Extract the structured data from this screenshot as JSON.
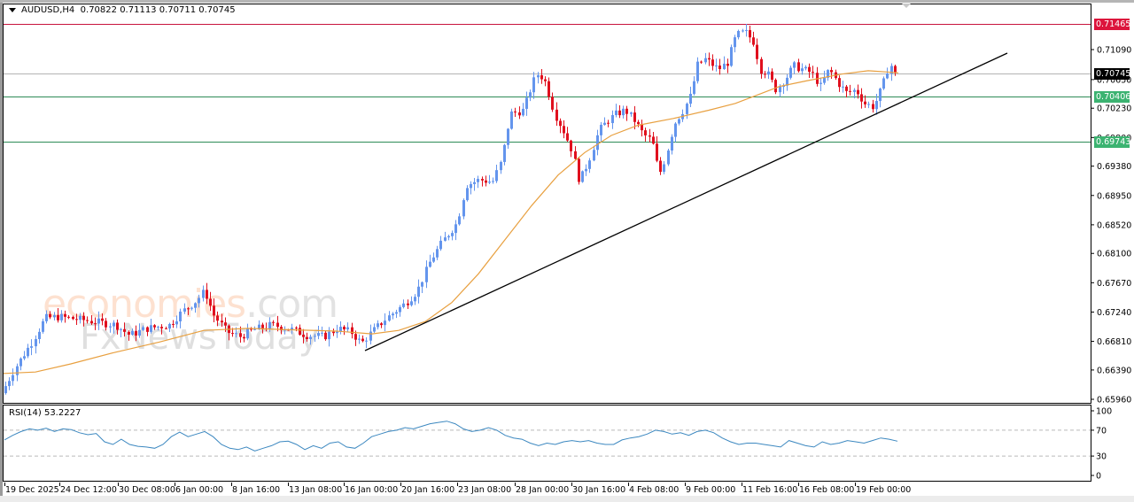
{
  "header": {
    "symbol": "AUDUSD,H4",
    "ohlc": "0.70822 0.71113 0.70711 0.70745"
  },
  "watermark": {
    "line1": "economies",
    "line1_suffix": ".com",
    "line2": "FxNewsToday"
  },
  "price_tags": [
    {
      "label": "0.71465",
      "price": 0.71465,
      "color": "#dc143c",
      "line_color": "#c8143c",
      "kind": "resistance"
    },
    {
      "label": "0.70745",
      "price": 0.70745,
      "color": "#000000",
      "line_color": "#b4b4b4",
      "kind": "current-price"
    },
    {
      "label": "0.70406",
      "price": 0.70406,
      "color": "#3cb371",
      "line_color": "#2e8b57",
      "kind": "support"
    },
    {
      "label": "0.69743",
      "price": 0.69743,
      "color": "#3cb371",
      "line_color": "#2e8b57",
      "kind": "support"
    }
  ],
  "rsi": {
    "label": "RSI(14) 53.2227",
    "levels": [
      "100",
      "70",
      "30",
      "0"
    ]
  },
  "colors": {
    "bull": "#6495ed",
    "bear": "#e0101e",
    "ma": "#e8a040",
    "trendline": "#000000",
    "rsi_line": "#3c88c0"
  },
  "chart_data": [
    {
      "type": "candlestick",
      "title": "AUDUSD,H4",
      "subtitle": "O 0.70822 H 0.71113 L 0.70711 C 0.70745",
      "ylabel": "Price",
      "y_ticks": [
        "0.71090",
        "0.70650",
        "0.70230",
        "0.69800",
        "0.69380",
        "0.68950",
        "0.68520",
        "0.68100",
        "0.67670",
        "0.67240",
        "0.66810",
        "0.66390",
        "0.65960"
      ],
      "ylim": [
        0.6585,
        0.7165
      ],
      "x_ticks": [
        "19 Dec 2025",
        "24 Dec 12:00",
        "30 Dec 08:00",
        "6 Jan 00:00",
        "8 Jan 16:00",
        "13 Jan 08:00",
        "16 Jan 00:00",
        "20 Jan 16:00",
        "23 Jan 08:00",
        "28 Jan 00:00",
        "30 Jan 16:00",
        "4 Feb 08:00",
        "9 Feb 00:00",
        "11 Feb 16:00",
        "16 Feb 08:00",
        "19 Feb 00:00"
      ],
      "horizontal_lines": [
        0.71465,
        0.70745,
        0.70406,
        0.69743
      ],
      "trendline": {
        "from": {
          "x": "16 Jan 00:00",
          "price": 0.6672
        },
        "to": {
          "x": "after 19 Feb",
          "price": 0.7112
        }
      },
      "moving_average": "orange MA rising from ~0.6634 to ~0.7078",
      "key_points": [
        {
          "label": "start",
          "price": 0.6605
        },
        {
          "label": "late Dec high",
          "price": 0.677
        },
        {
          "label": "16 Jan low",
          "price": 0.6672
        },
        {
          "label": "28 Jan high",
          "price": 0.7098
        },
        {
          "label": "30 Jan low",
          "price": 0.691
        },
        {
          "label": "4 Feb low",
          "price": 0.6895
        },
        {
          "label": "11 Feb high",
          "price": 0.7148
        },
        {
          "label": "18 Feb low",
          "price": 0.7017
        },
        {
          "label": "last close",
          "price": 0.70745
        }
      ],
      "grid": false
    },
    {
      "type": "line",
      "title": "RSI(14) 53.2227",
      "ylim": [
        0,
        100
      ],
      "y_ticks": [
        "100",
        "70",
        "30",
        "0"
      ],
      "levels": [
        70,
        30
      ],
      "last_value": 53.2227,
      "approx_values": [
        55,
        62,
        68,
        72,
        70,
        73,
        68,
        72,
        71,
        66,
        63,
        65,
        52,
        48,
        56,
        48,
        45,
        44,
        42,
        48,
        60,
        67,
        60,
        64,
        68,
        60,
        48,
        42,
        40,
        44,
        38,
        42,
        46,
        52,
        53,
        48,
        40,
        46,
        42,
        50,
        52,
        44,
        42,
        50,
        60,
        64,
        68,
        70,
        74,
        72,
        76,
        80,
        82,
        84,
        80,
        72,
        68,
        70,
        74,
        70,
        62,
        58,
        56,
        50,
        46,
        50,
        48,
        52,
        54,
        52,
        54,
        50,
        48,
        48,
        55,
        58,
        60,
        64,
        70,
        68,
        64,
        66,
        62,
        68,
        70,
        66,
        58,
        52,
        48,
        50,
        50,
        48,
        46,
        44,
        54,
        50,
        46,
        44,
        52,
        48,
        50,
        54,
        52,
        50,
        54,
        58,
        56,
        53
      ]
    }
  ]
}
